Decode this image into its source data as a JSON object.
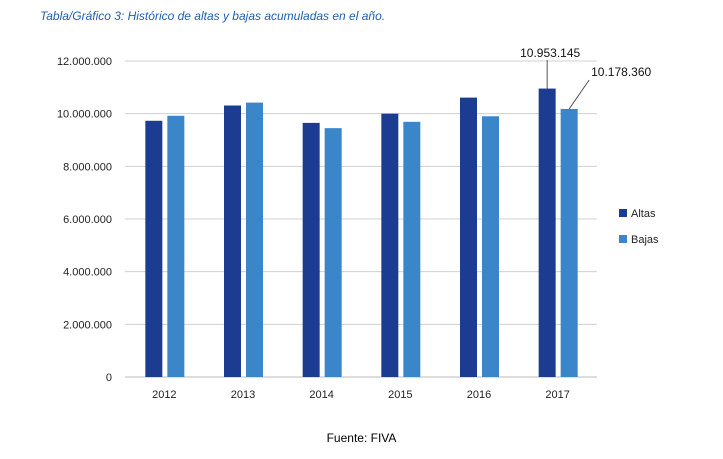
{
  "chart_data": {
    "type": "bar",
    "title": "Tabla/Gráfico 3: Histórico de altas y bajas acumuladas en el año.",
    "source": "Fuente: FIVA",
    "categories": [
      "2012",
      "2013",
      "2014",
      "2015",
      "2016",
      "2017"
    ],
    "series": [
      {
        "name": "Altas",
        "color": "#1c3c91",
        "values": [
          9730000,
          10310000,
          9650000,
          10000000,
          10610000,
          10953145
        ]
      },
      {
        "name": "Bajas",
        "color": "#3a86c8",
        "values": [
          9920000,
          10420000,
          9450000,
          9690000,
          9900000,
          10178360
        ]
      }
    ],
    "data_labels": [
      {
        "series": 0,
        "index": 5,
        "text": "10.953.145"
      },
      {
        "series": 1,
        "index": 5,
        "text": "10.178.360"
      }
    ],
    "yticks": [
      "0",
      "2.000.000",
      "4.000.000",
      "6.000.000",
      "8.000.000",
      "10.000.000",
      "12.000.000"
    ],
    "ylim": [
      0,
      12000000
    ],
    "grid": true,
    "legend": "right"
  }
}
